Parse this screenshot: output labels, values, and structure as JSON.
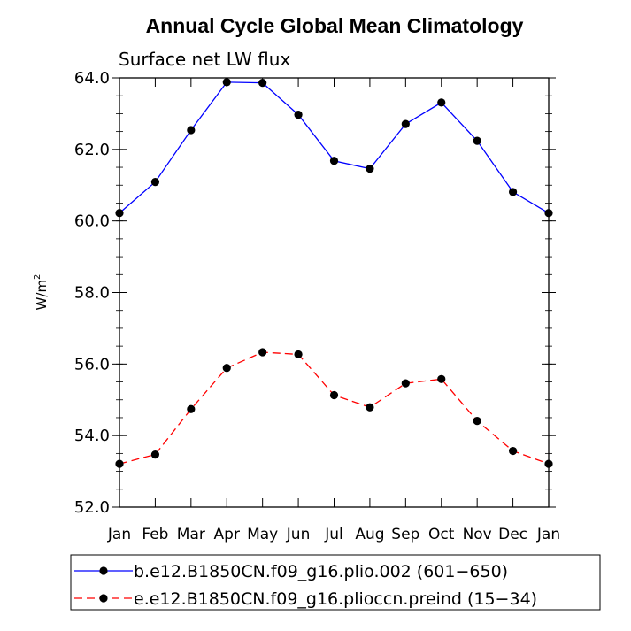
{
  "chart_data": {
    "type": "line",
    "title": "Annual Cycle Global Mean Climatology",
    "subtitle": "Surface net LW flux",
    "ylabel": "W/m",
    "ylabel_superscript": "2",
    "xlabel": "",
    "categories": [
      "Jan",
      "Feb",
      "Mar",
      "Apr",
      "May",
      "Jun",
      "Jul",
      "Aug",
      "Sep",
      "Oct",
      "Nov",
      "Dec",
      "Jan"
    ],
    "ylim": [
      52.0,
      64.0
    ],
    "yticks": [
      "52.0",
      "54.0",
      "56.0",
      "58.0",
      "60.0",
      "62.0",
      "64.0"
    ],
    "legend_position": "bottom",
    "series": [
      {
        "name": "b.e12.B1850CN.f09_g16.plio.002 (601−650)",
        "color": "#0000ff",
        "dash": "solid",
        "values": [
          60.22,
          61.09,
          62.54,
          63.88,
          63.86,
          62.97,
          61.68,
          61.46,
          62.71,
          63.31,
          62.24,
          60.81,
          60.22
        ]
      },
      {
        "name": "e.e12.B1850CN.f09_g16.plioccn.preind (15−34)",
        "color": "#ff0000",
        "dash": "dashed",
        "values": [
          53.21,
          53.47,
          54.74,
          55.89,
          56.33,
          56.27,
          55.13,
          54.79,
          55.46,
          55.58,
          54.41,
          53.57,
          53.21
        ]
      }
    ]
  }
}
